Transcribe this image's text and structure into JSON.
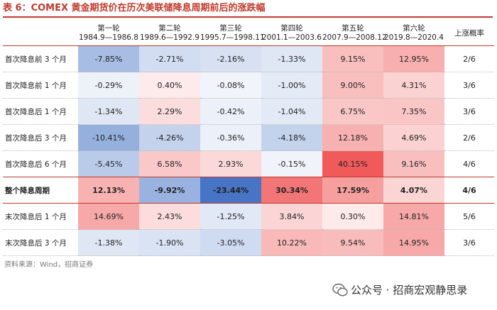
{
  "title": "表 6：COMEX 黄金期货价在历次美联储降息周期前后的涨跌幅",
  "header": {
    "rounds": [
      {
        "name": "第一轮",
        "period": "1984.9—1986.8"
      },
      {
        "name": "第二轮",
        "period": "1989.6—1992.9"
      },
      {
        "name": "第三轮",
        "period": "1995.7—1998.11"
      },
      {
        "name": "第四轮",
        "period": "2001.1—2003.6"
      },
      {
        "name": "第五轮",
        "period": "2007.9—2008.12"
      },
      {
        "name": "第六轮",
        "period": "2019.8—2020.4"
      }
    ],
    "prob_label": "上涨概率"
  },
  "rows": [
    {
      "label": "首次降息前 3 个月",
      "cells": [
        "-7.85%",
        "-2.71%",
        "-2.16%",
        "-1.33%",
        "9.15%",
        "12.95%"
      ],
      "prob": "2/6"
    },
    {
      "label": "首次降息前 1 个月",
      "cells": [
        "-0.29%",
        "0.40%",
        "-0.08%",
        "-1.00%",
        "9.00%",
        "4.31%"
      ],
      "prob": "3/6"
    },
    {
      "label": "首次降息后 1 个月",
      "cells": [
        "-1.34%",
        "2.29%",
        "-0.42%",
        "-1.04%",
        "6.75%",
        "7.35%"
      ],
      "prob": "3/6"
    },
    {
      "label": "首次降息后 3 个月",
      "cells": [
        "-10.41%",
        "-4.26%",
        "-0.36%",
        "-4.18%",
        "12.18%",
        "4.69%"
      ],
      "prob": "2/6"
    },
    {
      "label": "首次降息后 6 个月",
      "cells": [
        "-5.45%",
        "6.58%",
        "2.93%",
        "-0.15%",
        "40.15%",
        "9.16%"
      ],
      "prob": "4/6"
    },
    {
      "label": "整个降息周期",
      "cells": [
        "12.13%",
        "-9.92%",
        "-23.44%",
        "30.34%",
        "17.59%",
        "4.07%"
      ],
      "prob": "4/6",
      "bold": true
    },
    {
      "label": "末次降息后 1 个月",
      "cells": [
        "14.69%",
        "2.43%",
        "-1.25%",
        "3.84%",
        "0.30%",
        "14.81%"
      ],
      "prob": "5/6"
    },
    {
      "label": "末次降息后 3 个月",
      "cells": [
        "-1.38%",
        "-1.90%",
        "-3.05%",
        "10.22%",
        "9.54%",
        "14.95%"
      ],
      "prob": "3/6"
    }
  ],
  "source": "资料来源：Wind，招商证券",
  "watermark": "公众号 · 招商宏观静思录",
  "colors": {
    "negative": "#4472c4",
    "positive": "#f05a5a",
    "accent": "#c0392b"
  }
}
